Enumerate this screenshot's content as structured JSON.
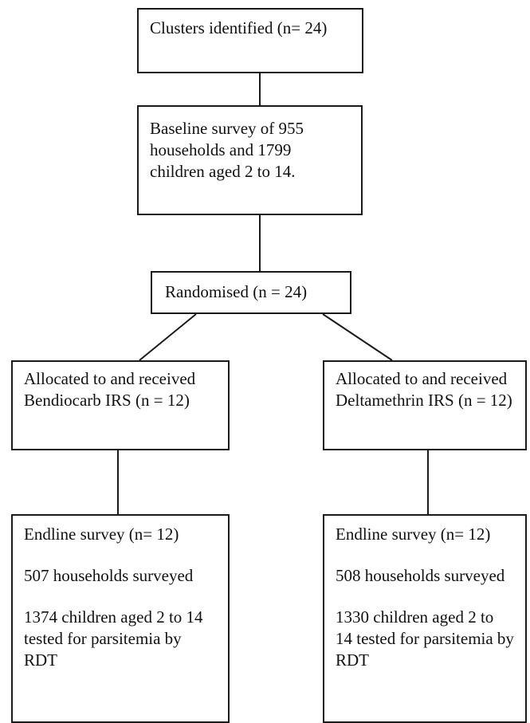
{
  "flowchart": {
    "clusters": {
      "text": "Clusters identified (n= 24)"
    },
    "baseline": {
      "text": "Baseline survey of 955 households and 1799 children aged 2 to 14."
    },
    "randomised": {
      "text": "Randomised (n = 24)"
    },
    "arm_left": {
      "allocation": "Allocated to and received Bendiocarb IRS (n = 12)",
      "endline": {
        "title": "Endline survey (n= 12)",
        "households": "507 households surveyed",
        "children": "1374 children aged 2 to 14 tested for parsitemia by RDT"
      }
    },
    "arm_right": {
      "allocation": "Allocated to and received Deltamethrin IRS (n = 12)",
      "endline": {
        "title": "Endline survey (n= 12)",
        "households": "508 households surveyed",
        "children": "1330 children aged 2 to 14 tested for parsitemia by RDT"
      }
    }
  }
}
